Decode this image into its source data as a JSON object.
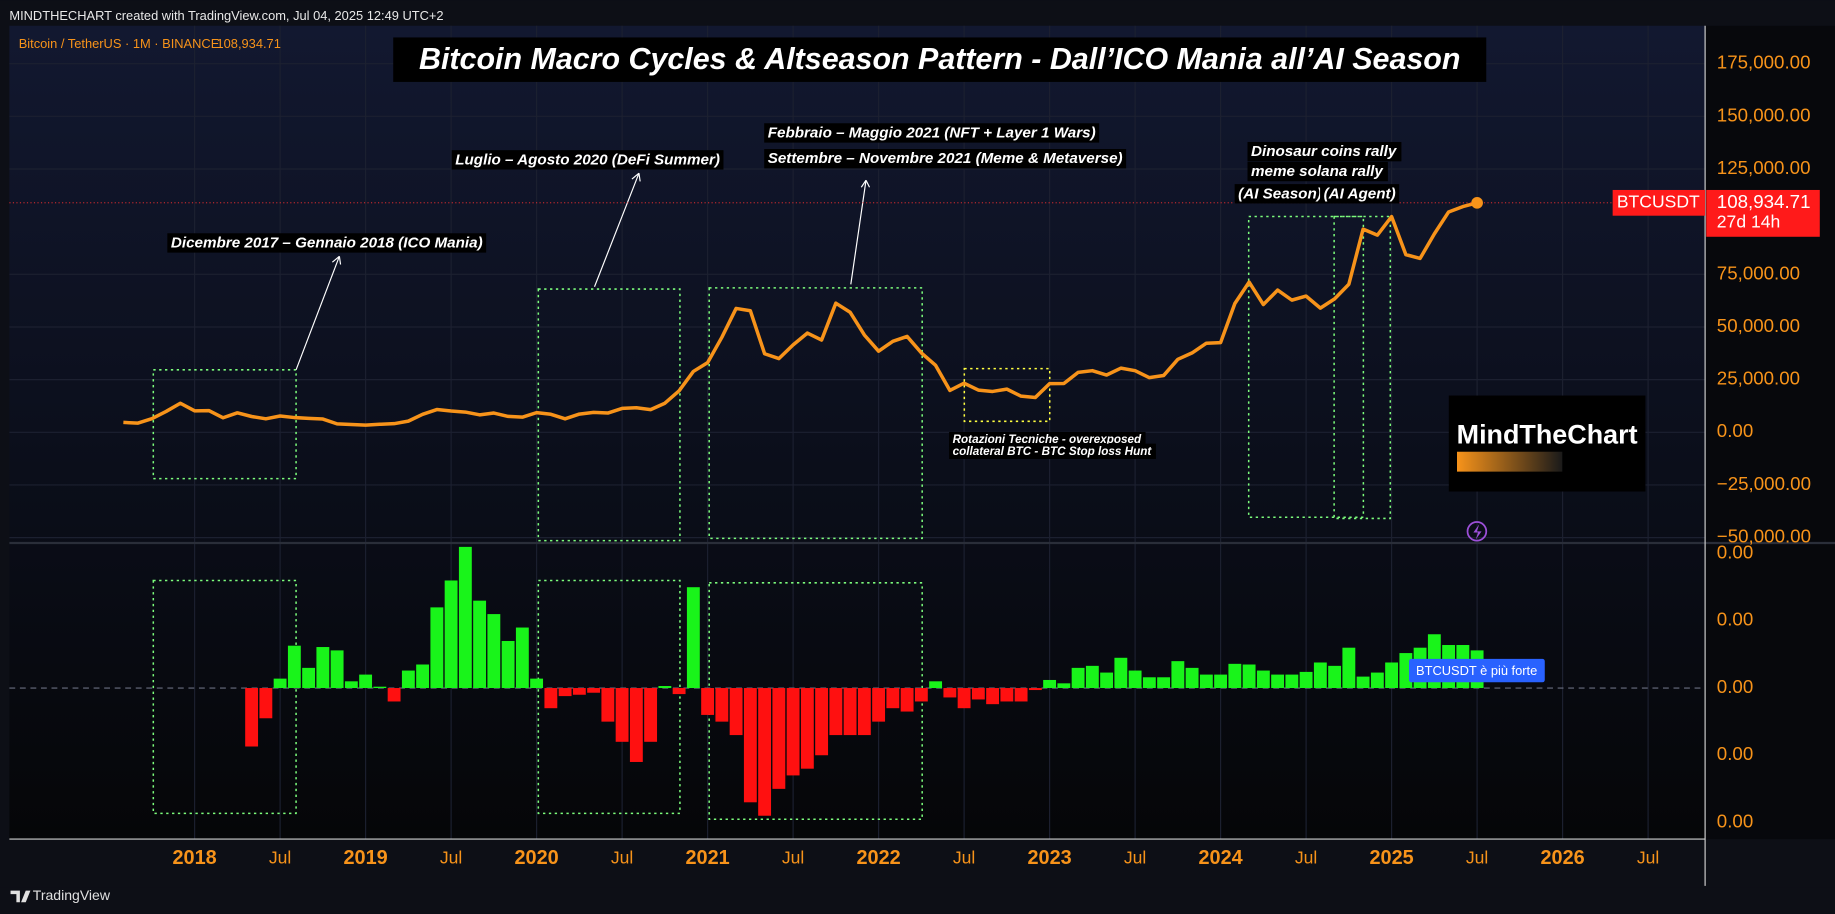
{
  "header": "MINDTHECHART created with TradingView.com, Jul 04, 2025 12:49 UTC+2",
  "footer": "TradingView",
  "logo": "MindTheChart",
  "signal_label": "BTCUSDT è più forte",
  "annotations": [
    "Dicembre 2017 – Gennaio 2018 (ICO Mania)",
    "Luglio – Agosto 2020 (DeFi Summer)",
    "Febbraio – Maggio 2021 (NFT + Layer 1 Wars)",
    "Settembre – Novembre 2021 (Meme & Metaverse)",
    "Dinosaur coins rally",
    "meme solana rally",
    "(AI Season)",
    "(AI Agent)",
    "Rotazioni Tecniche - overexposed",
    "collateral BTC - BTC Stop loss Hunt"
  ],
  "chart_data": [
    {
      "type": "line",
      "title": "Bitcoin Macro Cycles & Altseason Pattern - Dall’ICO Mania all’AI Season",
      "legend_symbol": "Bitcoin / TetherUS · 1M · BINANCE",
      "last_label": {
        "price": "108,934.71",
        "countdown": "27d 14h"
      },
      "x": [
        "2017-08",
        "2017-09",
        "2017-10",
        "2017-11",
        "2017-12",
        "2018-01",
        "2018-02",
        "2018-03",
        "2018-04",
        "2018-05",
        "2018-06",
        "2018-07",
        "2018-08",
        "2018-09",
        "2018-10",
        "2018-11",
        "2018-12",
        "2019-01",
        "2019-02",
        "2019-03",
        "2019-04",
        "2019-05",
        "2019-06",
        "2019-07",
        "2019-08",
        "2019-09",
        "2019-10",
        "2019-11",
        "2019-12",
        "2020-01",
        "2020-02",
        "2020-03",
        "2020-04",
        "2020-05",
        "2020-06",
        "2020-07",
        "2020-08",
        "2020-09",
        "2020-10",
        "2020-11",
        "2020-12",
        "2021-01",
        "2021-02",
        "2021-03",
        "2021-04",
        "2021-05",
        "2021-06",
        "2021-07",
        "2021-08",
        "2021-09",
        "2021-10",
        "2021-11",
        "2021-12",
        "2022-01",
        "2022-02",
        "2022-03",
        "2022-04",
        "2022-05",
        "2022-06",
        "2022-07",
        "2022-08",
        "2022-09",
        "2022-10",
        "2022-11",
        "2022-12",
        "2023-01",
        "2023-02",
        "2023-03",
        "2023-04",
        "2023-05",
        "2023-06",
        "2023-07",
        "2023-08",
        "2023-09",
        "2023-10",
        "2023-11",
        "2023-12",
        "2024-01",
        "2024-02",
        "2024-03",
        "2024-04",
        "2024-05",
        "2024-06",
        "2024-07",
        "2024-08",
        "2024-09",
        "2024-10",
        "2024-11",
        "2024-12",
        "2025-01",
        "2025-02",
        "2025-03",
        "2025-04",
        "2025-05",
        "2025-06",
        "2025-07"
      ],
      "series": [
        {
          "name": "BTCUSDT",
          "color": "#f7931a",
          "values": [
            4700,
            4340,
            6450,
            9900,
            13800,
            10200,
            10300,
            6900,
            9250,
            7500,
            6400,
            7750,
            7000,
            6600,
            6300,
            4000,
            3700,
            3400,
            3800,
            4100,
            5300,
            8550,
            10800,
            10100,
            9600,
            8300,
            9150,
            7550,
            7200,
            9350,
            8550,
            6400,
            8650,
            9450,
            9150,
            11350,
            11650,
            10780,
            13800,
            19700,
            28900,
            33100,
            45100,
            58800,
            57700,
            37300,
            35000,
            41500,
            47100,
            43800,
            61300,
            57000,
            46200,
            38500,
            43200,
            45500,
            37700,
            31800,
            19900,
            23300,
            20050,
            19400,
            20500,
            17150,
            16550,
            23100,
            23150,
            28450,
            29250,
            27200,
            30450,
            29250,
            25950,
            26950,
            34650,
            37700,
            42300,
            42600,
            61150,
            71300,
            60650,
            67500,
            62750,
            64650,
            58950,
            63350,
            70300,
            96450,
            93600,
            102400,
            84350,
            82550,
            94200,
            104600,
            107150,
            108934.71
          ]
        }
      ],
      "xlim": [
        "2016-12",
        "2026-11"
      ],
      "xticks": [
        {
          "value": "2018-01",
          "label": "2018"
        },
        {
          "value": "2018-07",
          "label": "Jul"
        },
        {
          "value": "2019-01",
          "label": "2019"
        },
        {
          "value": "2019-07",
          "label": "Jul"
        },
        {
          "value": "2020-01",
          "label": "2020"
        },
        {
          "value": "2020-07",
          "label": "Jul"
        },
        {
          "value": "2021-01",
          "label": "2021"
        },
        {
          "value": "2021-07",
          "label": "Jul"
        },
        {
          "value": "2022-01",
          "label": "2022"
        },
        {
          "value": "2022-07",
          "label": "Jul"
        },
        {
          "value": "2023-01",
          "label": "2023"
        },
        {
          "value": "2023-07",
          "label": "Jul"
        },
        {
          "value": "2024-01",
          "label": "2024"
        },
        {
          "value": "2024-07",
          "label": "Jul"
        },
        {
          "value": "2025-01",
          "label": "2025"
        },
        {
          "value": "2025-07",
          "label": "Jul"
        },
        {
          "value": "2026-01",
          "label": "2026"
        },
        {
          "value": "2026-07",
          "label": "Jul"
        }
      ],
      "ylim": [
        -52000,
        193000
      ],
      "yticks": [
        {
          "value": 175000,
          "label": "175,000.00"
        },
        {
          "value": 150000,
          "label": "150,000.00"
        },
        {
          "value": 125000,
          "label": "125,000.00"
        },
        {
          "value": 75000,
          "label": "75,000.00"
        },
        {
          "value": 50000,
          "label": "50,000.00"
        },
        {
          "value": 25000,
          "label": "25,000.00"
        },
        {
          "value": 0,
          "label": "0.00"
        },
        {
          "value": -25000,
          "label": "−25,000.00"
        },
        {
          "value": -50000,
          "label": "−50,000.00"
        }
      ],
      "grid": true
    },
    {
      "type": "bar",
      "up_color": "#19f41a",
      "down_color": "#ff1010",
      "x": [
        "2018-05",
        "2018-06",
        "2018-07",
        "2018-08",
        "2018-09",
        "2018-10",
        "2018-11",
        "2018-12",
        "2019-01",
        "2019-02",
        "2019-03",
        "2019-04",
        "2019-05",
        "2019-06",
        "2019-07",
        "2019-08",
        "2019-09",
        "2019-10",
        "2019-11",
        "2019-12",
        "2020-01",
        "2020-02",
        "2020-03",
        "2020-04",
        "2020-05",
        "2020-06",
        "2020-07",
        "2020-08",
        "2020-09",
        "2020-10",
        "2020-11",
        "2020-12",
        "2021-01",
        "2021-02",
        "2021-03",
        "2021-04",
        "2021-05",
        "2021-06",
        "2021-07",
        "2021-08",
        "2021-09",
        "2021-10",
        "2021-11",
        "2021-12",
        "2022-01",
        "2022-02",
        "2022-03",
        "2022-04",
        "2022-05",
        "2022-06",
        "2022-07",
        "2022-08",
        "2022-09",
        "2022-10",
        "2022-11",
        "2022-12",
        "2023-01",
        "2023-02",
        "2023-03",
        "2023-04",
        "2023-05",
        "2023-06",
        "2023-07",
        "2023-08",
        "2023-09",
        "2023-10",
        "2023-11",
        "2023-12",
        "2024-01",
        "2024-02",
        "2024-03",
        "2024-04",
        "2024-05",
        "2024-06",
        "2024-07",
        "2024-08",
        "2024-09",
        "2024-10",
        "2024-11",
        "2024-12",
        "2025-01",
        "2025-02",
        "2025-03",
        "2025-04",
        "2025-05",
        "2025-06",
        "2025-07"
      ],
      "values": [
        -0.00087,
        -0.00045,
        0.00014,
        0.00063,
        0.0003,
        0.00061,
        0.00056,
        0.0001,
        0.0002,
        2e-05,
        -0.0002,
        0.00026,
        0.00035,
        0.0012,
        0.0016,
        0.0021,
        0.0013,
        0.0011,
        0.0007,
        0.0009,
        0.00014,
        -0.0003,
        -0.00012,
        -0.0001,
        -7e-05,
        -0.0005,
        -0.0008,
        -0.0011,
        -0.0008,
        3e-05,
        -9e-05,
        0.0015,
        -0.0004,
        -0.0005,
        -0.0007,
        -0.0017,
        -0.0019,
        -0.0015,
        -0.0013,
        -0.0012,
        -0.001,
        -0.0007,
        -0.0007,
        -0.0007,
        -0.0005,
        -0.0003,
        -0.00035,
        -0.0002,
        0.0001,
        -0.00014,
        -0.0003,
        -0.00017,
        -0.00024,
        -0.0002,
        -0.0002,
        -3e-05,
        0.00012,
        7e-05,
        0.0003,
        0.00033,
        0.00023,
        0.00045,
        0.00026,
        0.00016,
        0.00016,
        0.0004,
        0.0003,
        0.0002,
        0.0002,
        0.00036,
        0.00035,
        0.00026,
        0.0002,
        0.0002,
        0.00024,
        0.00038,
        0.00033,
        0.0006,
        0.00017,
        0.00023,
        0.00038,
        0.00052,
        0.0006,
        0.0008,
        0.00064,
        0.00064,
        0.00056
      ],
      "ylim": [
        -0.00223,
        0.00214
      ],
      "yticks": [
        {
          "value": 0.002,
          "label": "0.00"
        },
        {
          "value": 0.001,
          "label": "0.00"
        },
        {
          "value": 0,
          "label": "0.00"
        },
        {
          "value": -0.001,
          "label": "0.00"
        },
        {
          "value": -0.002,
          "label": "0.00"
        }
      ]
    }
  ]
}
